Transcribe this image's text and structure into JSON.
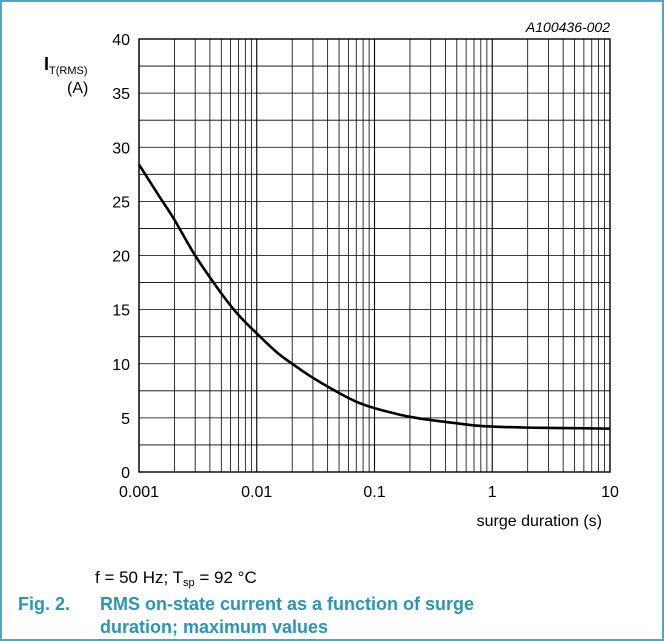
{
  "figure": {
    "reference_code": "A100436-002",
    "conditions": {
      "f": "f = 50 Hz; T",
      "sub": "sp",
      "rest": " = 92 °C"
    },
    "caption_number": "Fig. 2.",
    "caption_text": "RMS on-state current as a function of surge duration; maximum values"
  },
  "colors": {
    "border": "#4aa8c8",
    "caption": "#2a95b9",
    "grid": "#000000",
    "curve": "#000000"
  },
  "chart_data": {
    "type": "line",
    "xlabel": "surge duration (s)",
    "ylabel": {
      "main": "I",
      "sub": "T(RMS)",
      "unit": "(A)"
    },
    "xscale": "log",
    "xlim": [
      0.001,
      10
    ],
    "ylim": [
      0,
      40
    ],
    "grid": true,
    "x_ticks": [
      "0.001",
      "0.01",
      "0.1",
      "1",
      "10"
    ],
    "y_ticks": [
      "0",
      "5",
      "10",
      "15",
      "20",
      "25",
      "30",
      "35",
      "40"
    ],
    "series": [
      {
        "x": [
          0.001,
          0.0015,
          0.002,
          0.003,
          0.005,
          0.007,
          0.01,
          0.015,
          0.02,
          0.03,
          0.05,
          0.07,
          0.1,
          0.15,
          0.2,
          0.3,
          0.5,
          0.7,
          1,
          2,
          5,
          10
        ],
        "values": [
          28.4,
          25.4,
          23.3,
          20.0,
          16.5,
          14.5,
          12.8,
          11.0,
          10.0,
          8.7,
          7.3,
          6.5,
          5.9,
          5.4,
          5.1,
          4.8,
          4.5,
          4.3,
          4.2,
          4.1,
          4.05,
          4.0
        ]
      }
    ]
  }
}
